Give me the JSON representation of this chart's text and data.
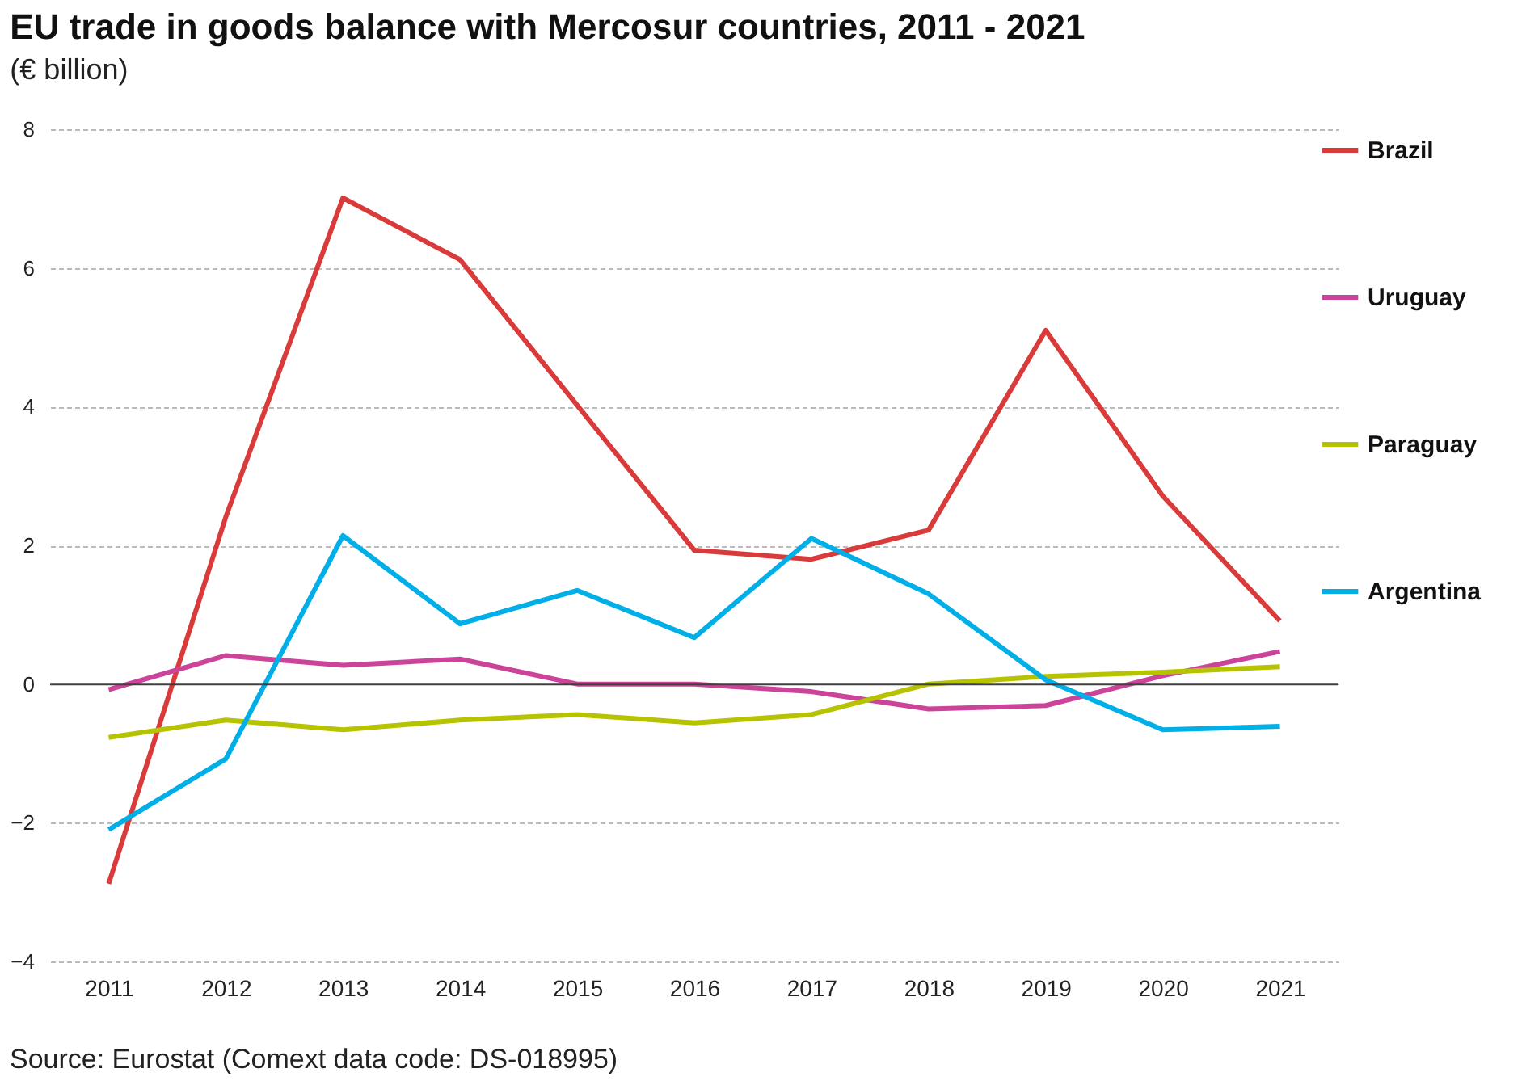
{
  "chart_data": {
    "type": "line",
    "title": "EU trade in goods balance with Mercosur countries, 2011 - 2021",
    "subtitle": "(€ billion)",
    "categories": [
      "2011",
      "2012",
      "2013",
      "2014",
      "2015",
      "2016",
      "2017",
      "2018",
      "2019",
      "2020",
      "2021"
    ],
    "series": [
      {
        "name": "Brazil",
        "color": "#d93b3b",
        "values": [
          -2.88,
          2.41,
          7.01,
          6.12,
          4.02,
          1.93,
          1.8,
          2.22,
          5.1,
          2.71,
          0.91
        ]
      },
      {
        "name": "Uruguay",
        "color": "#cc4499",
        "values": [
          -0.08,
          0.41,
          0.27,
          0.36,
          0,
          0,
          -0.11,
          -0.36,
          -0.31,
          0.12,
          0.47
        ]
      },
      {
        "name": "Paraguay",
        "color": "#b5c300",
        "values": [
          -0.77,
          -0.52,
          -0.66,
          -0.52,
          -0.44,
          -0.56,
          -0.44,
          0,
          0.11,
          0.17,
          0.25
        ]
      },
      {
        "name": "Argentina",
        "color": "#00aee8",
        "values": [
          -2.1,
          -1.08,
          2.14,
          0.87,
          1.35,
          0.67,
          2.1,
          1.3,
          0.06,
          -0.66,
          -0.61
        ]
      }
    ],
    "ylim": [
      -4,
      8
    ],
    "yticks": [
      -4,
      -2,
      0,
      2,
      4,
      6,
      8
    ],
    "grid": "y",
    "legend": "right",
    "marker": "none",
    "line_style": "solid",
    "ref_lines": [
      {
        "axis": "y",
        "value": 0,
        "color": "#404040"
      }
    ],
    "annotations": [
      "Source: Eurostat (Comext data code: DS-018995)"
    ]
  }
}
